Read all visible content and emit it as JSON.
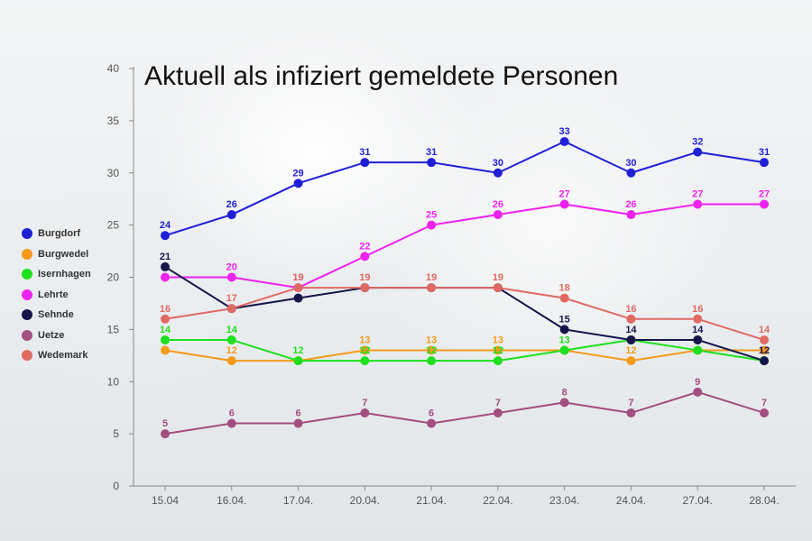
{
  "chart_data": {
    "type": "line",
    "title": "Aktuell als infiziert gemeldete Personen",
    "xlabel": "",
    "ylabel": "",
    "ylim": [
      0,
      40
    ],
    "yticks": [
      "0",
      "5",
      "10",
      "15",
      "20",
      "25",
      "30",
      "35",
      "40"
    ],
    "categories": [
      "15.04",
      "16.04.",
      "17.04.",
      "20.04.",
      "21.04.",
      "22.04.",
      "23.04.",
      "24.04.",
      "27.04.",
      "28.04."
    ],
    "legend_position": "left",
    "grid": false,
    "series": [
      {
        "name": "Burgdorf",
        "color": "#1f1fd6",
        "values": [
          24,
          26,
          29,
          31,
          31,
          30,
          33,
          30,
          32,
          31
        ]
      },
      {
        "name": "Burgwedel",
        "color": "#f59a1b",
        "values": [
          13,
          12,
          12,
          13,
          13,
          13,
          13,
          12,
          13,
          13
        ]
      },
      {
        "name": "Isernhagen",
        "color": "#1ee01e",
        "values": [
          14,
          14,
          12,
          12,
          12,
          12,
          13,
          14,
          13,
          12
        ]
      },
      {
        "name": "Lehrte",
        "color": "#ee22ee",
        "values": [
          20,
          20,
          19,
          22,
          25,
          26,
          27,
          26,
          27,
          27
        ]
      },
      {
        "name": "Sehnde",
        "color": "#15154a",
        "values": [
          21,
          17,
          18,
          19,
          19,
          19,
          15,
          14,
          14,
          12
        ]
      },
      {
        "name": "Uetze",
        "color": "#a24e7e",
        "values": [
          5,
          6,
          6,
          7,
          6,
          7,
          8,
          7,
          9,
          7
        ]
      },
      {
        "name": "Wedemark",
        "color": "#e06a63",
        "values": [
          16,
          17,
          19,
          19,
          19,
          19,
          18,
          16,
          16,
          14
        ]
      }
    ],
    "labelled_points": {
      "Burgdorf": [
        0,
        1,
        2,
        3,
        4,
        5,
        6,
        7,
        8,
        9
      ],
      "Burgwedel": [
        1,
        3,
        4,
        5,
        7
      ],
      "Isernhagen": [
        0,
        1,
        2,
        3,
        4,
        5,
        6
      ],
      "Lehrte": [
        1,
        2,
        3,
        4,
        5,
        6,
        7,
        8,
        9
      ],
      "Sehnde": [
        0,
        6,
        7,
        8,
        9
      ],
      "Uetze": [
        0,
        1,
        2,
        3,
        4,
        5,
        6,
        7,
        8,
        9
      ],
      "Wedemark": [
        0,
        1,
        2,
        3,
        4,
        5,
        6,
        7,
        8,
        9
      ]
    }
  }
}
